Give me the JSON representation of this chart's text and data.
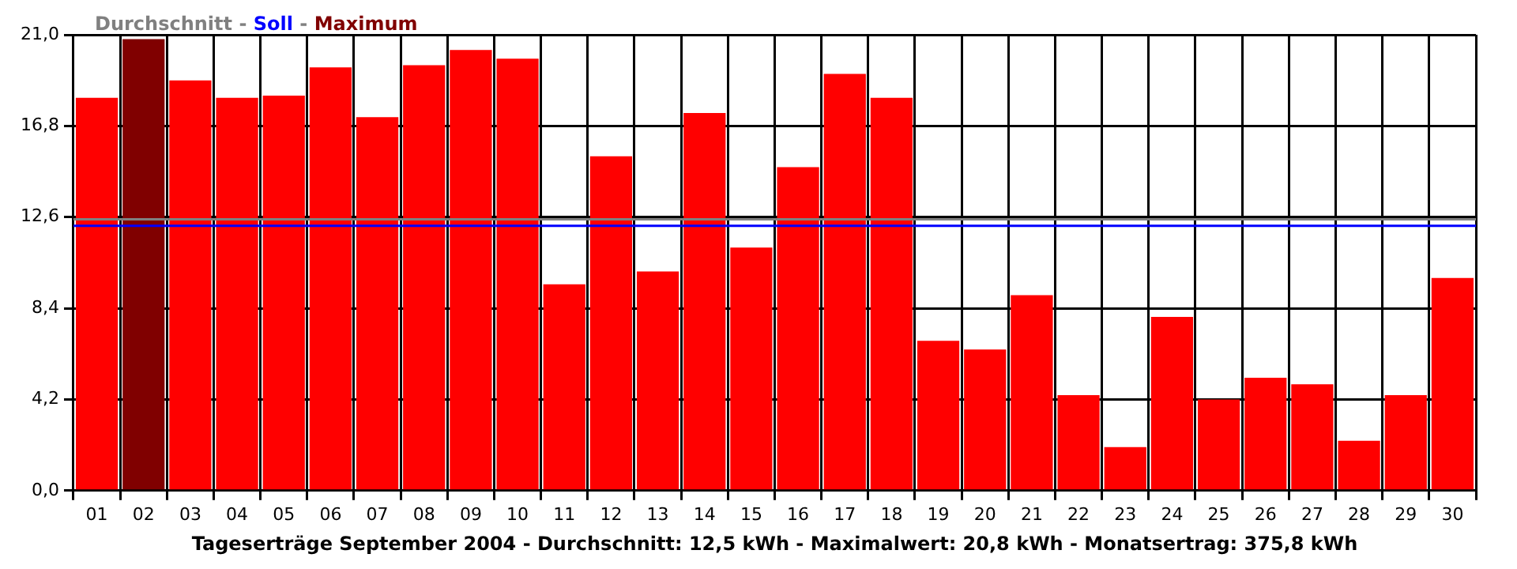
{
  "chart_data": {
    "type": "bar",
    "xlabel": "Tageserträge September 2004 - Durchschnitt: 12,5 kWh - Maximalwert: 20,8 kWh - Monatsertrag: 375,8 kWh",
    "title": "Durchschnitt - Soll - Maximum",
    "categories": [
      "01",
      "02",
      "03",
      "04",
      "05",
      "06",
      "07",
      "08",
      "09",
      "10",
      "11",
      "12",
      "13",
      "14",
      "15",
      "16",
      "17",
      "18",
      "19",
      "20",
      "21",
      "22",
      "23",
      "24",
      "25",
      "26",
      "27",
      "28",
      "29",
      "30"
    ],
    "values": [
      18.1,
      20.8,
      18.9,
      18.1,
      18.2,
      19.5,
      17.2,
      19.6,
      20.3,
      19.9,
      9.5,
      15.4,
      10.1,
      17.4,
      11.2,
      14.9,
      19.2,
      18.1,
      6.9,
      6.5,
      9.0,
      4.4,
      2.0,
      8.0,
      4.2,
      5.2,
      4.9,
      2.3,
      4.4,
      9.8
    ],
    "colors": [
      "#ff0000",
      "#800000",
      "#ff0000",
      "#ff0000",
      "#ff0000",
      "#ff0000",
      "#ff0000",
      "#ff0000",
      "#ff0000",
      "#ff0000",
      "#ff0000",
      "#ff0000",
      "#ff0000",
      "#ff0000",
      "#ff0000",
      "#ff0000",
      "#ff0000",
      "#ff0000",
      "#ff0000",
      "#ff0000",
      "#ff0000",
      "#ff0000",
      "#ff0000",
      "#ff0000",
      "#ff0000",
      "#ff0000",
      "#ff0000",
      "#ff0000",
      "#ff0000",
      "#ff0000"
    ],
    "ylim": [
      0,
      21
    ],
    "yticks": [
      {
        "value": 0,
        "label": "0,0"
      },
      {
        "value": 4.2,
        "label": "4,2"
      },
      {
        "value": 8.4,
        "label": "8,4"
      },
      {
        "value": 12.6,
        "label": "12,6"
      },
      {
        "value": 16.8,
        "label": "16,8"
      },
      {
        "value": 21,
        "label": "21,0"
      }
    ],
    "ref_lines": [
      {
        "axis": "y",
        "value": 12.5,
        "color": "#808080"
      },
      {
        "axis": "y",
        "value": 12.2,
        "color": "#0000ff"
      }
    ],
    "grid": true,
    "legend": false
  }
}
